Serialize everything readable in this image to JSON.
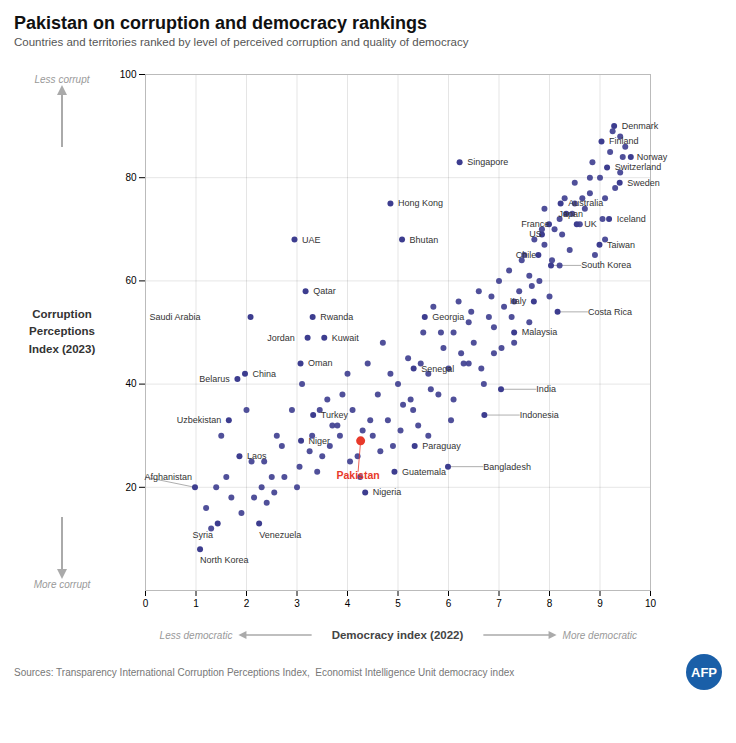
{
  "chart_data": {
    "type": "scatter",
    "title": "Pakistan on corruption and democracy rankings",
    "subtitle": "Countries and territories ranked by level of perceived corruption and quality of democracy",
    "xlabel": "Democracy index (2022)",
    "ylabel": "Corruption\nPerceptions\nIndex (2023)",
    "source": "Sources: Transparency International Corruption Perceptions Index,  Economist Intelligence Unit democracy index",
    "annotations": {
      "x_less": "Less democratic",
      "x_more": "More democratic",
      "y_high": "Less corrupt",
      "y_low": "More corrupt",
      "logo": "AFP"
    },
    "xlim": [
      0,
      10
    ],
    "ylim": [
      0,
      100
    ],
    "xticks": [
      0,
      1,
      2,
      3,
      4,
      5,
      6,
      7,
      8,
      9,
      10
    ],
    "yticks": [
      20,
      40,
      60,
      80,
      100
    ],
    "grid": true,
    "color": "#3d3d8f",
    "labeled_points": [
      {
        "label": "Denmark",
        "x": 9.28,
        "y": 90
      },
      {
        "label": "Finland",
        "x": 9.03,
        "y": 87
      },
      {
        "label": "Norway",
        "x": 9.61,
        "y": 84
      },
      {
        "label": "Switzerland",
        "x": 9.14,
        "y": 82
      },
      {
        "label": "Sweden",
        "x": 9.39,
        "y": 79
      },
      {
        "label": "Australia",
        "x": 8.22,
        "y": 75
      },
      {
        "label": "Iceland",
        "x": 9.18,
        "y": 72
      },
      {
        "label": "Japan",
        "x": 8.33,
        "y": 73
      },
      {
        "label": "France",
        "x": 7.99,
        "y": 71
      },
      {
        "label": "US",
        "x": 7.85,
        "y": 69
      },
      {
        "label": "UK",
        "x": 8.54,
        "y": 71
      },
      {
        "label": "Taiwan",
        "x": 8.99,
        "y": 67
      },
      {
        "label": "Chile",
        "x": 7.78,
        "y": 65
      },
      {
        "label": "South Korea",
        "x": 8.03,
        "y": 63
      },
      {
        "label": "Italy",
        "x": 7.69,
        "y": 56
      },
      {
        "label": "Malaysia",
        "x": 7.3,
        "y": 50
      },
      {
        "label": "Costa Rica",
        "x": 8.16,
        "y": 54
      },
      {
        "label": "Singapore",
        "x": 6.22,
        "y": 83
      },
      {
        "label": "Hong Kong",
        "x": 4.85,
        "y": 75
      },
      {
        "label": "UAE",
        "x": 2.95,
        "y": 68
      },
      {
        "label": "Bhutan",
        "x": 5.08,
        "y": 68
      },
      {
        "label": "Qatar",
        "x": 3.17,
        "y": 58
      },
      {
        "label": "Saudi Arabia",
        "x": 2.08,
        "y": 53
      },
      {
        "label": "Rwanda",
        "x": 3.31,
        "y": 53
      },
      {
        "label": "China",
        "x": 1.97,
        "y": 42
      },
      {
        "label": "Jordan",
        "x": 3.21,
        "y": 49
      },
      {
        "label": "Kuwait",
        "x": 3.54,
        "y": 49
      },
      {
        "label": "Oman",
        "x": 3.07,
        "y": 44
      },
      {
        "label": "Belarus",
        "x": 1.82,
        "y": 41
      },
      {
        "label": "Turkey",
        "x": 3.32,
        "y": 34
      },
      {
        "label": "Georgia",
        "x": 5.53,
        "y": 53
      },
      {
        "label": "Senegal",
        "x": 5.31,
        "y": 43
      },
      {
        "label": "India",
        "x": 7.04,
        "y": 39
      },
      {
        "label": "Indonesia",
        "x": 6.71,
        "y": 34
      },
      {
        "label": "Bangladesh",
        "x": 5.99,
        "y": 24
      },
      {
        "label": "Uzbekistan",
        "x": 1.65,
        "y": 33
      },
      {
        "label": "Niger",
        "x": 3.08,
        "y": 29
      },
      {
        "label": "Paraguay",
        "x": 5.33,
        "y": 28
      },
      {
        "label": "Guatemala",
        "x": 4.93,
        "y": 23
      },
      {
        "label": "Nigeria",
        "x": 4.35,
        "y": 19
      },
      {
        "label": "Laos",
        "x": 1.86,
        "y": 26
      },
      {
        "label": "Afghanistan",
        "x": 0.98,
        "y": 20
      },
      {
        "label": "North Korea",
        "x": 1.08,
        "y": 8
      },
      {
        "label": "Syria",
        "x": 1.43,
        "y": 13
      },
      {
        "label": "Venezuela",
        "x": 2.25,
        "y": 13
      }
    ],
    "highlight": {
      "label": "Pakistan",
      "x": 4.26,
      "y": 29,
      "color": "#e8392a"
    },
    "points": [
      {
        "x": 1.5,
        "y": 30
      },
      {
        "x": 1.7,
        "y": 18
      },
      {
        "x": 1.9,
        "y": 15
      },
      {
        "x": 2.1,
        "y": 25
      },
      {
        "x": 2.3,
        "y": 20
      },
      {
        "x": 2.5,
        "y": 22
      },
      {
        "x": 2.7,
        "y": 28
      },
      {
        "x": 2.9,
        "y": 35
      },
      {
        "x": 3.0,
        "y": 20
      },
      {
        "x": 3.1,
        "y": 40
      },
      {
        "x": 3.3,
        "y": 30
      },
      {
        "x": 3.5,
        "y": 26
      },
      {
        "x": 3.7,
        "y": 32
      },
      {
        "x": 3.9,
        "y": 38
      },
      {
        "x": 4.0,
        "y": 42
      },
      {
        "x": 4.1,
        "y": 35
      },
      {
        "x": 4.2,
        "y": 26
      },
      {
        "x": 4.4,
        "y": 44
      },
      {
        "x": 4.5,
        "y": 30
      },
      {
        "x": 4.6,
        "y": 38
      },
      {
        "x": 4.7,
        "y": 48
      },
      {
        "x": 4.8,
        "y": 33
      },
      {
        "x": 5.0,
        "y": 40
      },
      {
        "x": 5.1,
        "y": 36
      },
      {
        "x": 5.2,
        "y": 45
      },
      {
        "x": 5.4,
        "y": 32
      },
      {
        "x": 5.5,
        "y": 50
      },
      {
        "x": 5.6,
        "y": 42
      },
      {
        "x": 5.7,
        "y": 55
      },
      {
        "x": 5.8,
        "y": 38
      },
      {
        "x": 5.9,
        "y": 47
      },
      {
        "x": 6.0,
        "y": 43
      },
      {
        "x": 6.1,
        "y": 50
      },
      {
        "x": 6.2,
        "y": 56
      },
      {
        "x": 6.3,
        "y": 44
      },
      {
        "x": 6.4,
        "y": 52
      },
      {
        "x": 6.5,
        "y": 48
      },
      {
        "x": 6.6,
        "y": 58
      },
      {
        "x": 6.7,
        "y": 40
      },
      {
        "x": 6.8,
        "y": 53
      },
      {
        "x": 6.9,
        "y": 46
      },
      {
        "x": 7.0,
        "y": 60
      },
      {
        "x": 7.1,
        "y": 55
      },
      {
        "x": 7.2,
        "y": 62
      },
      {
        "x": 7.3,
        "y": 48
      },
      {
        "x": 7.4,
        "y": 58
      },
      {
        "x": 7.5,
        "y": 65
      },
      {
        "x": 7.6,
        "y": 52
      },
      {
        "x": 7.7,
        "y": 68
      },
      {
        "x": 7.8,
        "y": 60
      },
      {
        "x": 7.9,
        "y": 74
      },
      {
        "x": 8.0,
        "y": 57
      },
      {
        "x": 8.1,
        "y": 70
      },
      {
        "x": 8.2,
        "y": 63
      },
      {
        "x": 8.3,
        "y": 76
      },
      {
        "x": 8.4,
        "y": 66
      },
      {
        "x": 8.5,
        "y": 79
      },
      {
        "x": 8.6,
        "y": 71
      },
      {
        "x": 8.7,
        "y": 74
      },
      {
        "x": 8.8,
        "y": 77
      },
      {
        "x": 8.9,
        "y": 65
      },
      {
        "x": 9.0,
        "y": 80
      },
      {
        "x": 9.1,
        "y": 68
      },
      {
        "x": 9.2,
        "y": 85
      },
      {
        "x": 9.3,
        "y": 78
      },
      {
        "x": 9.4,
        "y": 81
      },
      {
        "x": 9.5,
        "y": 86
      },
      {
        "x": 2.0,
        "y": 35
      },
      {
        "x": 1.3,
        "y": 12
      },
      {
        "x": 1.6,
        "y": 22
      },
      {
        "x": 2.4,
        "y": 17
      },
      {
        "x": 2.6,
        "y": 30
      },
      {
        "x": 3.4,
        "y": 23
      },
      {
        "x": 3.6,
        "y": 37
      },
      {
        "x": 3.8,
        "y": 32
      },
      {
        "x": 4.3,
        "y": 31
      },
      {
        "x": 4.9,
        "y": 28
      },
      {
        "x": 5.3,
        "y": 35
      },
      {
        "x": 5.6,
        "y": 30
      },
      {
        "x": 6.1,
        "y": 37
      },
      {
        "x": 6.4,
        "y": 44
      },
      {
        "x": 6.9,
        "y": 51
      },
      {
        "x": 7.3,
        "y": 56
      },
      {
        "x": 7.6,
        "y": 61
      },
      {
        "x": 7.9,
        "y": 67
      },
      {
        "x": 8.2,
        "y": 72
      },
      {
        "x": 8.5,
        "y": 75
      },
      {
        "x": 8.8,
        "y": 80
      },
      {
        "x": 9.1,
        "y": 76
      },
      {
        "x": 9.4,
        "y": 88
      },
      {
        "x": 1.2,
        "y": 16
      },
      {
        "x": 1.4,
        "y": 20
      },
      {
        "x": 2.15,
        "y": 18
      },
      {
        "x": 2.35,
        "y": 25
      },
      {
        "x": 2.55,
        "y": 19
      },
      {
        "x": 2.75,
        "y": 22
      },
      {
        "x": 3.05,
        "y": 24
      },
      {
        "x": 3.25,
        "y": 27
      },
      {
        "x": 3.45,
        "y": 35
      },
      {
        "x": 3.65,
        "y": 28
      },
      {
        "x": 3.85,
        "y": 30
      },
      {
        "x": 4.05,
        "y": 25
      },
      {
        "x": 4.25,
        "y": 22
      },
      {
        "x": 4.45,
        "y": 33
      },
      {
        "x": 4.65,
        "y": 27
      },
      {
        "x": 4.85,
        "y": 42
      },
      {
        "x": 5.05,
        "y": 31
      },
      {
        "x": 5.25,
        "y": 37
      },
      {
        "x": 5.45,
        "y": 44
      },
      {
        "x": 5.65,
        "y": 39
      },
      {
        "x": 5.85,
        "y": 50
      },
      {
        "x": 6.05,
        "y": 33
      },
      {
        "x": 6.25,
        "y": 46
      },
      {
        "x": 6.45,
        "y": 54
      },
      {
        "x": 6.65,
        "y": 43
      },
      {
        "x": 6.85,
        "y": 57
      },
      {
        "x": 7.05,
        "y": 47
      },
      {
        "x": 7.25,
        "y": 53
      },
      {
        "x": 7.45,
        "y": 64
      },
      {
        "x": 7.65,
        "y": 59
      },
      {
        "x": 7.85,
        "y": 70
      },
      {
        "x": 8.05,
        "y": 64
      },
      {
        "x": 8.25,
        "y": 69
      },
      {
        "x": 8.45,
        "y": 73
      },
      {
        "x": 8.65,
        "y": 76
      },
      {
        "x": 8.85,
        "y": 83
      },
      {
        "x": 9.05,
        "y": 72
      },
      {
        "x": 9.25,
        "y": 89
      },
      {
        "x": 9.45,
        "y": 84
      }
    ]
  }
}
